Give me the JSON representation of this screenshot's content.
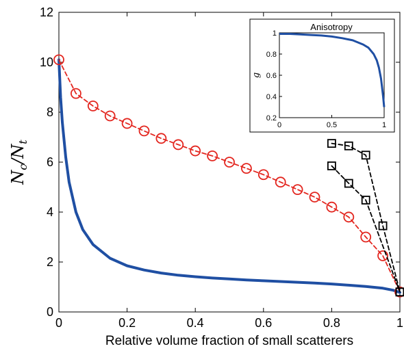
{
  "chart_data": [
    {
      "type": "line",
      "xlabel": "Relative volume fraction of small scatterers",
      "ylabel": "N_c/N_t",
      "xlim": [
        0,
        1
      ],
      "ylim": [
        0,
        12
      ],
      "xticks": [
        0,
        0.2,
        0.4,
        0.6,
        0.8,
        1
      ],
      "xtick_labels": [
        "0",
        "0.2",
        "0.4",
        "0.6",
        "0.8",
        "1"
      ],
      "yticks": [
        0,
        2,
        4,
        6,
        8,
        10,
        12
      ],
      "ytick_labels": [
        "0",
        "2",
        "4",
        "6",
        "8",
        "10",
        "12"
      ],
      "grid": false,
      "series": [
        {
          "style": "solid",
          "color": "#1f4fa3",
          "x": [
            0,
            0.005,
            0.01,
            0.02,
            0.03,
            0.05,
            0.07,
            0.1,
            0.15,
            0.2,
            0.25,
            0.3,
            0.35,
            0.4,
            0.45,
            0.5,
            0.55,
            0.6,
            0.65,
            0.7,
            0.75,
            0.8,
            0.85,
            0.9,
            0.95,
            0.98,
            1.0
          ],
          "y": [
            10.1,
            8.6,
            7.6,
            6.2,
            5.2,
            4.0,
            3.3,
            2.7,
            2.15,
            1.85,
            1.68,
            1.56,
            1.47,
            1.41,
            1.36,
            1.32,
            1.28,
            1.25,
            1.22,
            1.19,
            1.16,
            1.12,
            1.07,
            1.02,
            0.95,
            0.87,
            0.78
          ]
        },
        {
          "style": "dashed",
          "marker": "circle",
          "color": "#e3261f",
          "x": [
            0,
            0.05,
            0.1,
            0.15,
            0.2,
            0.25,
            0.3,
            0.35,
            0.4,
            0.45,
            0.5,
            0.55,
            0.6,
            0.65,
            0.7,
            0.75,
            0.8,
            0.85,
            0.9,
            0.95,
            1.0
          ],
          "y": [
            10.1,
            8.75,
            8.25,
            7.85,
            7.55,
            7.25,
            6.95,
            6.7,
            6.45,
            6.25,
            6.0,
            5.75,
            5.5,
            5.2,
            4.9,
            4.6,
            4.2,
            3.8,
            3.0,
            2.25,
            0.8
          ]
        },
        {
          "style": "dashed",
          "marker": "square",
          "color": "#000000",
          "x": [
            0.8,
            0.85,
            0.9,
            0.95,
            1.0
          ],
          "y": [
            6.75,
            6.65,
            6.28,
            3.45,
            0.8
          ]
        },
        {
          "style": "dashed",
          "marker": "square",
          "color": "#000000",
          "x": [
            0.8,
            0.85,
            0.9,
            1.0
          ],
          "y": [
            5.85,
            5.15,
            4.48,
            0.8
          ]
        }
      ]
    },
    {
      "type": "line",
      "title": "Anisotropy",
      "ylabel": "g",
      "xlim": [
        0,
        1
      ],
      "ylim": [
        0.2,
        1.0
      ],
      "xticks": [
        0,
        0.5,
        1
      ],
      "xtick_labels": [
        "0",
        "0.5",
        "1"
      ],
      "yticks": [
        0.2,
        0.4,
        0.6,
        0.8,
        1.0
      ],
      "ytick_labels": [
        "0.2",
        "0.4",
        "0.6",
        "0.8",
        "1"
      ],
      "series": [
        {
          "style": "solid",
          "color": "#1f4fa3",
          "x": [
            0,
            0.1,
            0.2,
            0.3,
            0.4,
            0.5,
            0.6,
            0.7,
            0.8,
            0.85,
            0.9,
            0.93,
            0.95,
            0.97,
            0.98,
            0.99,
            1.0
          ],
          "y": [
            0.99,
            0.99,
            0.985,
            0.98,
            0.975,
            0.965,
            0.95,
            0.93,
            0.89,
            0.86,
            0.8,
            0.74,
            0.67,
            0.57,
            0.49,
            0.4,
            0.3
          ]
        }
      ]
    }
  ]
}
